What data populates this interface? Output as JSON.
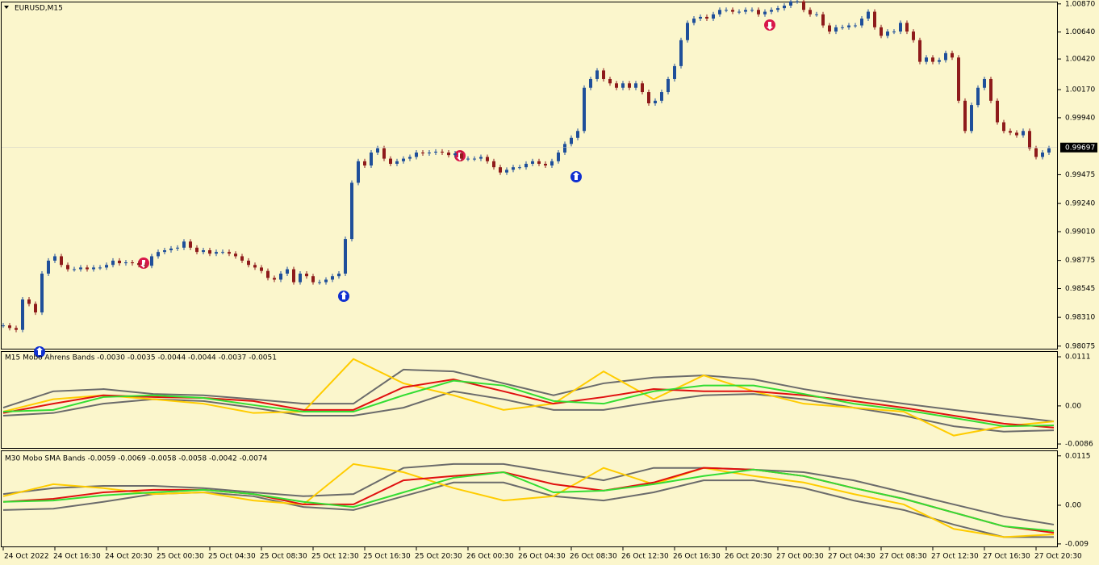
{
  "chart_data": [
    {
      "type": "candlestick",
      "title": "EURUSD,M15",
      "color_up": "#1f4f9a",
      "color_down": "#8e1b1b",
      "ylim": [
        0.98054,
        1.00882
      ],
      "yticks": [
        {
          "value": 1.0087,
          "label": "1.00870"
        },
        {
          "value": 1.0064,
          "label": "1.00640"
        },
        {
          "value": 1.0042,
          "label": "1.00420"
        },
        {
          "value": 1.0017,
          "label": "1.00170"
        },
        {
          "value": 0.9994,
          "label": "0.99940"
        },
        0.99475,
        {
          "value": 0.9924,
          "label": "0.99240"
        },
        {
          "value": 0.9901,
          "label": "0.99010"
        },
        0.98775,
        0.98545,
        {
          "value": 0.9831,
          "label": "0.98310"
        },
        0.98075
      ],
      "last_price": 0.99697,
      "time_labels": [
        "24 Oct 2022",
        "24 Oct 16:30",
        "24 Oct 20:30",
        "25 Oct 00:30",
        "25 Oct 04:30",
        "25 Oct 08:30",
        "25 Oct 12:30",
        "25 Oct 16:30",
        "25 Oct 20:30",
        "26 Oct 00:30",
        "26 Oct 04:30",
        "26 Oct 08:30",
        "26 Oct 12:30",
        "26 Oct 16:30",
        "26 Oct 20:30",
        "27 Oct 00:30",
        "27 Oct 04:30",
        "27 Oct 08:30",
        "27 Oct 12:30",
        "27 Oct 16:30",
        "27 Oct 20:30"
      ],
      "values": [
        0.98244,
        0.98223,
        0.98208,
        0.98456,
        0.9842,
        0.9835,
        0.98667,
        0.98773,
        0.98809,
        0.98738,
        0.98703,
        0.98703,
        0.98717,
        0.98703,
        0.98717,
        0.98717,
        0.98738,
        0.98773,
        0.98752,
        0.98759,
        0.98752,
        0.98738,
        0.98731,
        0.98809,
        0.98844,
        0.98858,
        0.98872,
        0.98879,
        0.98929,
        0.98879,
        0.98844,
        0.98858,
        0.9883,
        0.98844,
        0.98844,
        0.9883,
        0.98809,
        0.98773,
        0.98738,
        0.98717,
        0.98689,
        0.98632,
        0.98618,
        0.98667,
        0.98703,
        0.98597,
        0.98667,
        0.98646,
        0.98597,
        0.98597,
        0.98618,
        0.98646,
        0.98667,
        0.9895,
        0.99409,
        0.99585,
        0.9955,
        0.99656,
        0.99691,
        0.99606,
        0.99564,
        0.99585,
        0.99606,
        0.9962,
        0.99656,
        0.99649,
        0.99656,
        0.99663,
        0.99656,
        0.99635,
        0.99649,
        0.99606,
        0.99606,
        0.99606,
        0.9962,
        0.99585,
        0.99536,
        0.99493,
        0.99515,
        0.99536,
        0.99536,
        0.99564,
        0.99585,
        0.99564,
        0.9955,
        0.99585,
        0.99656,
        0.99726,
        0.99776,
        0.99832,
        1.00185,
        1.00256,
        1.00326,
        1.00256,
        1.00221,
        1.00185,
        1.00221,
        1.00185,
        1.00221,
        1.0015,
        1.00058,
        1.00079,
        1.0015,
        1.00256,
        1.00362,
        1.00574,
        1.00715,
        1.0075,
        1.00764,
        1.0075,
        1.00785,
        1.00821,
        1.00821,
        1.00806,
        1.00806,
        1.00821,
        1.00821,
        1.00785,
        1.00806,
        1.00821,
        1.00835,
        1.00856,
        1.00891,
        1.00891,
        1.00821,
        1.00785,
        1.00785,
        1.00694,
        1.00644,
        1.00679,
        1.00679,
        1.00694,
        1.00694,
        1.0075,
        1.00806,
        1.00679,
        1.00609,
        1.00644,
        1.00644,
        1.00715,
        1.00644,
        1.00574,
        1.00397,
        1.00432,
        1.00397,
        1.00411,
        1.00468,
        1.00432,
        1.00079,
        0.99832,
        1.00044,
        1.00185,
        1.00256,
        1.00079,
        0.99903,
        0.99832,
        0.99818,
        0.99797,
        0.99832,
        0.99691,
        0.9962,
        0.99656,
        0.99691
      ]
    },
    {
      "type": "line",
      "title": "M15 Mobo Ahrens Bands -0.0030 -0.0035 -0.0044 -0.0044 -0.0037 -0.0051",
      "ylim": [
        -0.0095,
        0.0122
      ],
      "yticks": [
        0.0111,
        {
          "value": 0,
          "label": "0.00"
        },
        -0.0086
      ],
      "series": [
        {
          "color": "#6b6b6b",
          "values": [
            -0.0004,
            0.0033,
            0.0038,
            0.0027,
            0.0024,
            0.0015,
            0.0005,
            0.0005,
            0.0082,
            0.0078,
            0.0051,
            0.0024,
            0.0051,
            0.0064,
            0.0069,
            0.006,
            0.0038,
            0.002,
            0.0005,
            -0.0009,
            -0.0022,
            -0.0035
          ]
        },
        {
          "color": "#6b6b6b",
          "values": [
            -0.0022,
            -0.0016,
            0.0005,
            0.0015,
            0.0011,
            -0.0004,
            -0.0022,
            -0.0022,
            -0.0004,
            0.0033,
            0.0015,
            -0.0009,
            -0.0009,
            0.0009,
            0.0024,
            0.0027,
            0.0015,
            -0.0004,
            -0.0022,
            -0.0046,
            -0.0058,
            -0.0055
          ]
        },
        {
          "color": "#ffcc00",
          "values": [
            -0.0013,
            0.0015,
            0.0024,
            0.0015,
            0.0005,
            -0.0016,
            -0.0013,
            0.0106,
            0.0051,
            0.0024,
            -0.0009,
            0.0005,
            0.0078,
            0.0015,
            0.0069,
            0.0033,
            0.0005,
            -0.0004,
            -0.0013,
            -0.0067,
            -0.0046,
            -0.0035
          ]
        },
        {
          "color": "#e01010",
          "values": [
            -0.0016,
            0.0005,
            0.0024,
            0.002,
            0.0018,
            0.0011,
            -0.0009,
            -0.0009,
            0.0042,
            0.006,
            0.0033,
            0.0005,
            0.002,
            0.0038,
            0.0033,
            0.0033,
            0.0024,
            0.0011,
            -0.0004,
            -0.0022,
            -0.004,
            -0.0049
          ]
        },
        {
          "color": "#33dd33",
          "values": [
            -0.0013,
            -0.0009,
            0.002,
            0.0024,
            0.0018,
            0.0002,
            -0.0013,
            -0.0013,
            0.0024,
            0.0057,
            0.0046,
            0.0011,
            0.0005,
            0.0033,
            0.0046,
            0.0046,
            0.0027,
            0.0005,
            -0.0009,
            -0.0027,
            -0.0046,
            -0.0044
          ]
        }
      ]
    },
    {
      "type": "line",
      "title": "M30 Mobo SMA Bands -0.0059 -0.0069 -0.0058 -0.0058 -0.0042 -0.0074",
      "ylim": [
        -0.0094,
        0.0124
      ],
      "yticks": [
        0.0115,
        {
          "value": 0,
          "label": "0.00"
        },
        -0.009
      ],
      "series": [
        {
          "color": "#6b6b6b",
          "values": [
            0.0026,
            0.004,
            0.0045,
            0.0045,
            0.004,
            0.003,
            0.0021,
            0.0026,
            0.0087,
            0.0096,
            0.0096,
            0.0077,
            0.0058,
            0.0087,
            0.0087,
            0.0083,
            0.0077,
            0.0058,
            0.003,
            0.0002,
            -0.0026,
            -0.0045
          ]
        },
        {
          "color": "#6b6b6b",
          "values": [
            -0.0011,
            -0.0008,
            0.0008,
            0.0026,
            0.003,
            0.0021,
            -0.0004,
            -0.0011,
            0.0021,
            0.0053,
            0.0053,
            0.0021,
            0.0011,
            0.003,
            0.0058,
            0.0058,
            0.004,
            0.0011,
            -0.0011,
            -0.0045,
            -0.0074,
            -0.0074
          ]
        },
        {
          "color": "#ffcc00",
          "values": [
            0.0021,
            0.0049,
            0.004,
            0.0026,
            0.003,
            0.0011,
            0.0002,
            0.0096,
            0.0077,
            0.004,
            0.0011,
            0.0021,
            0.0087,
            0.0049,
            0.0087,
            0.0068,
            0.0053,
            0.0026,
            0.0002,
            -0.0055,
            -0.0074,
            -0.0068
          ]
        },
        {
          "color": "#e01010",
          "values": [
            0.0008,
            0.0015,
            0.003,
            0.0036,
            0.0036,
            0.0026,
            0.0002,
            0.0002,
            0.0058,
            0.0068,
            0.0077,
            0.0049,
            0.0034,
            0.0053,
            0.0087,
            0.0083,
            0.0068,
            0.004,
            0.0015,
            -0.0017,
            -0.0049,
            -0.0064
          ]
        },
        {
          "color": "#33dd33",
          "values": [
            0.0008,
            0.0011,
            0.0023,
            0.003,
            0.0036,
            0.0026,
            0.0008,
            -0.0004,
            0.003,
            0.0064,
            0.0077,
            0.003,
            0.0034,
            0.0049,
            0.0068,
            0.0083,
            0.0068,
            0.004,
            0.0015,
            -0.0017,
            -0.0049,
            -0.006
          ]
        }
      ]
    }
  ]
}
